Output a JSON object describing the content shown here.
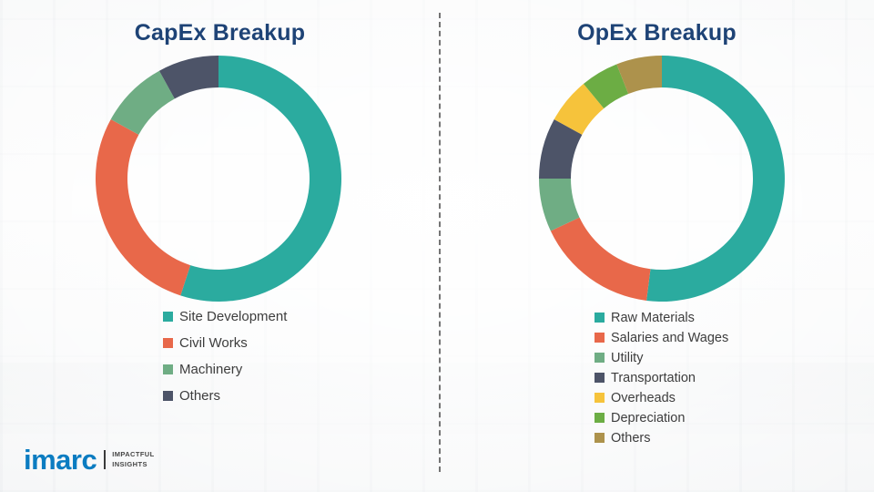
{
  "chart_data": [
    {
      "type": "pie",
      "subtype": "donut",
      "title": "CapEx Breakup",
      "categories": [
        "Site Development",
        "Civil Works",
        "Machinery",
        "Others"
      ],
      "values": [
        55,
        28,
        9,
        8
      ],
      "colors": [
        "#2bا",
        "",
        "",
        ""
      ],
      "legend_position": "bottom"
    },
    {
      "type": "pie",
      "subtype": "donut",
      "title": "OpEx Breakup",
      "categories": [
        "Raw Materials",
        "Salaries and Wages",
        "Utility",
        "Transportation",
        "Overheads",
        "Depreciation",
        "Others"
      ],
      "values": [
        52,
        16,
        7,
        8,
        6,
        5,
        6
      ],
      "colors": [
        "#2bab9f",
        "#e8684a",
        "#6fad84",
        "#4d5468",
        "#f6c33b",
        "#6cad44",
        "#ad924c"
      ],
      "legend_position": "bottom"
    }
  ],
  "logo": {
    "brand": "imarc",
    "tagline_line1": "IMPACTFUL",
    "tagline_line2": "INSIGHTS",
    "brand_color": "#0b7cc1"
  },
  "style": {
    "title_color": "#1e4376",
    "legend_text_color": "#3d3d3d",
    "divider_style": "dashed"
  }
}
